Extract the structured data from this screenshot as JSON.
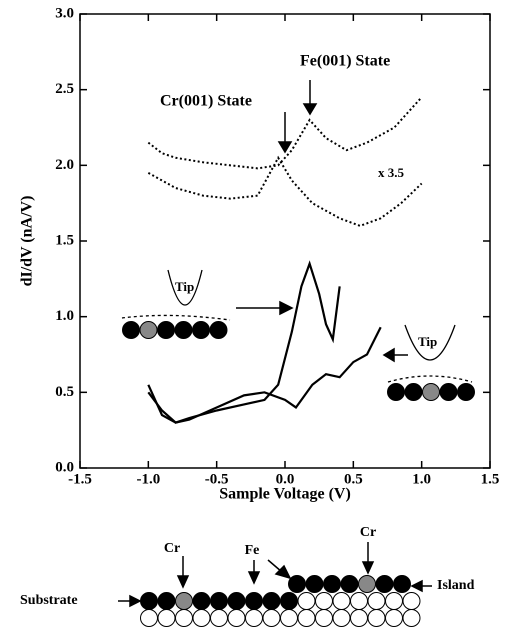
{
  "chart_data": {
    "type": "line",
    "xlabel": "Sample Voltage (V)",
    "ylabel": "dI/dV  (nA/V)",
    "xlim": [
      -1.5,
      1.5
    ],
    "ylim": [
      0,
      3
    ],
    "xticks": [
      -1.5,
      {
        "value": -1,
        "label": "-1.0"
      },
      -0.5,
      {
        "value": 0,
        "label": "0.0"
      },
      0.5,
      {
        "value": 1,
        "label": "1.0"
      },
      1.5
    ],
    "yticks": [
      {
        "value": 0,
        "label": "0.0"
      },
      0.5,
      {
        "value": 1,
        "label": "1.0"
      },
      1.5,
      {
        "value": 2,
        "label": "2.0"
      },
      2.5,
      {
        "value": 3,
        "label": "3.0"
      }
    ],
    "series": [
      {
        "style": "dotted",
        "color": "#000",
        "x": [
          -1.0,
          -0.9,
          -0.8,
          -0.6,
          -0.4,
          -0.2,
          -0.05,
          0.05,
          0.18,
          0.3,
          0.45,
          0.6,
          0.8,
          0.9,
          1.0
        ],
        "values": [
          2.15,
          2.08,
          2.05,
          2.02,
          2.0,
          1.98,
          2.0,
          2.1,
          2.3,
          2.18,
          2.1,
          2.15,
          2.25,
          2.35,
          2.45
        ]
      },
      {
        "style": "dotted",
        "color": "#000",
        "x": [
          -1.0,
          -0.9,
          -0.8,
          -0.6,
          -0.4,
          -0.2,
          -0.05,
          0.05,
          0.2,
          0.4,
          0.55,
          0.7,
          0.85,
          1.0
        ],
        "values": [
          1.95,
          1.9,
          1.85,
          1.8,
          1.78,
          1.8,
          2.05,
          1.9,
          1.75,
          1.65,
          1.6,
          1.65,
          1.75,
          1.88
        ]
      },
      {
        "style": "solid",
        "color": "#000",
        "x": [
          -1.0,
          -0.9,
          -0.8,
          -0.7,
          -0.5,
          -0.3,
          -0.15,
          -0.05,
          0.05,
          0.12,
          0.18,
          0.25,
          0.3,
          0.35,
          0.4
        ],
        "values": [
          0.5,
          0.38,
          0.3,
          0.33,
          0.38,
          0.42,
          0.45,
          0.55,
          0.9,
          1.2,
          1.35,
          1.15,
          0.95,
          0.85,
          1.2
        ]
      },
      {
        "style": "solid",
        "color": "#000",
        "x": [
          -1.0,
          -0.9,
          -0.8,
          -0.7,
          -0.5,
          -0.3,
          -0.15,
          0,
          0.08,
          0.2,
          0.3,
          0.4,
          0.5,
          0.6,
          0.7
        ],
        "values": [
          0.55,
          0.35,
          0.3,
          0.32,
          0.4,
          0.48,
          0.5,
          0.45,
          0.4,
          0.55,
          0.62,
          0.6,
          0.7,
          0.75,
          0.93
        ]
      }
    ],
    "annotations": [
      "Fe(001) State",
      "Cr(001) State",
      "x 3.5",
      "Tip",
      "Tip"
    ],
    "diagram_labels": [
      "Cr",
      "Fe",
      "Cr",
      "Substrate",
      "Island"
    ]
  }
}
